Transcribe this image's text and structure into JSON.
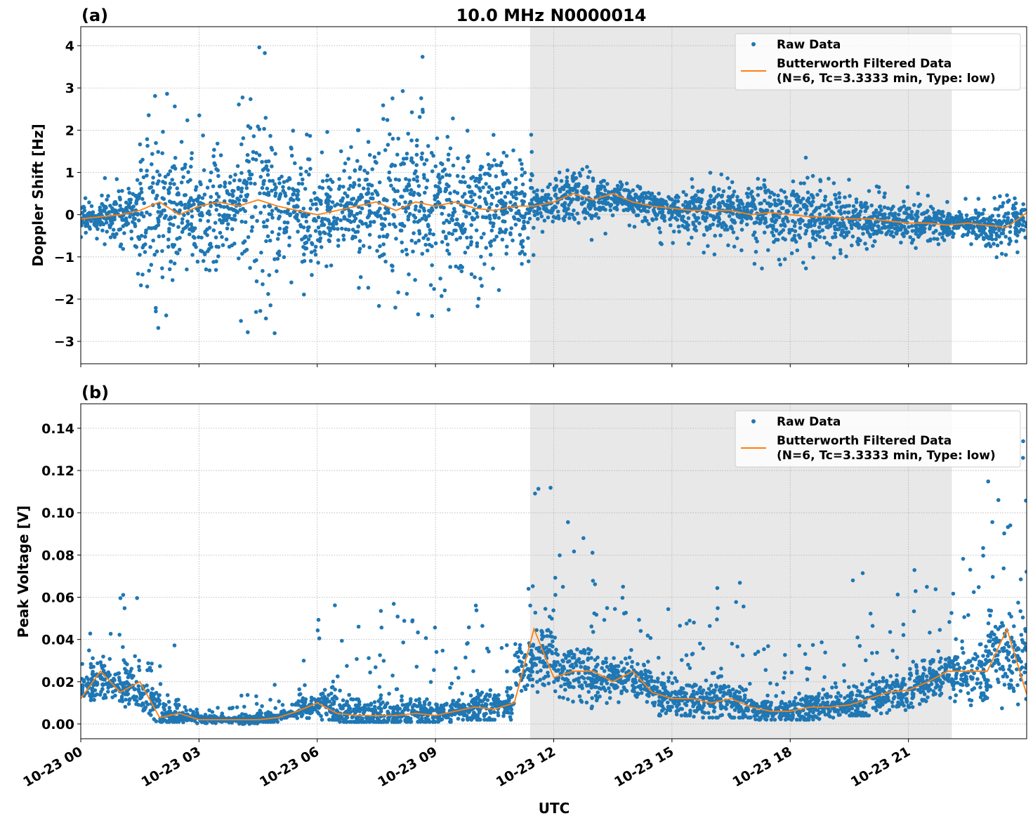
{
  "figure": {
    "title": "10.0 MHz N0000014",
    "xlabel": "UTC"
  },
  "legend": {
    "raw_label": "Raw Data",
    "filtered_label_line1": "Butterworth Filtered Data",
    "filtered_label_line2": "(N=6, Tc=3.3333 min, Type: low)",
    "placement": "top-right"
  },
  "colors": {
    "raw": "#1f77b4",
    "filtered": "#ff7f0e",
    "shade": "#e8e8e8"
  },
  "chart_data": [
    {
      "type": "scatter+line",
      "panel_label": "(a)",
      "ylabel": "Doppler Shift [Hz]",
      "xlim_hours": [
        0,
        24
      ],
      "ylim": [
        -3.53,
        4.45
      ],
      "grid": true,
      "shaded_interval_hours": [
        11.4,
        22.1
      ],
      "x_ticks_hours": [
        0,
        3,
        6,
        9,
        12,
        15,
        18,
        21
      ],
      "y_ticks": [
        -3,
        -2,
        -1,
        0,
        1,
        2,
        3,
        4
      ],
      "y_tick_labels": [
        "−3",
        "−2",
        "−1",
        "0",
        "1",
        "2",
        "3",
        "4"
      ],
      "raw_bins_hours_step": 0.5,
      "raw_min": [
        -0.6,
        -0.7,
        -1.5,
        -3.2,
        -2.9,
        -1.6,
        -2.2,
        -1.5,
        -3.0,
        -2.9,
        -1.8,
        -2.1,
        -1.3,
        -1.5,
        -2.0,
        -2.2,
        -2.5,
        -2.4,
        -2.4,
        -1.9,
        -2.3,
        -1.9,
        -1.2,
        -0.5,
        -0.6,
        -0.8,
        -0.5,
        -0.4,
        -0.6,
        -0.7,
        -0.8,
        -0.9,
        -1.0,
        -1.0,
        -1.3,
        -1.2,
        -1.35,
        -1.2,
        -1.1,
        -0.9,
        -0.8,
        -0.7,
        -0.8,
        -0.7,
        -0.7,
        -0.8,
        -1.1,
        -0.9
      ],
      "raw_max": [
        0.5,
        0.9,
        1.2,
        3.1,
        2.9,
        2.3,
        2.6,
        2.1,
        3.9,
        4.05,
        2.2,
        2.1,
        2.0,
        2.3,
        2.0,
        3.3,
        3.2,
        4.1,
        2.6,
        2.6,
        2.4,
        2.45,
        2.0,
        0.9,
        1.5,
        1.2,
        0.8,
        0.8,
        0.7,
        0.5,
        0.7,
        1.0,
        1.1,
        1.1,
        1.2,
        1.5,
        1.35,
        1.2,
        1.1,
        1.0,
        0.8,
        0.8,
        0.7,
        0.7,
        0.5,
        0.5,
        0.8,
        0.8
      ],
      "filtered_x_hours": [
        0,
        0.5,
        1,
        1.5,
        2,
        2.5,
        3,
        3.5,
        4,
        4.5,
        5,
        5.5,
        6,
        6.5,
        7,
        7.5,
        8,
        8.5,
        9,
        9.5,
        10,
        10.5,
        11,
        11.5,
        12,
        12.5,
        13,
        13.5,
        14,
        14.5,
        15,
        15.5,
        16,
        16.5,
        17,
        17.5,
        18,
        18.5,
        19,
        19.5,
        20,
        20.5,
        21,
        21.5,
        22,
        22.5,
        23,
        23.5,
        24
      ],
      "filtered_y": [
        -0.1,
        -0.05,
        0.0,
        0.1,
        0.3,
        0.0,
        0.2,
        0.3,
        0.2,
        0.35,
        0.2,
        0.1,
        0.0,
        0.1,
        0.2,
        0.3,
        0.1,
        0.3,
        0.2,
        0.3,
        0.15,
        0.1,
        0.2,
        0.2,
        0.3,
        0.5,
        0.35,
        0.5,
        0.3,
        0.2,
        0.15,
        0.1,
        0.1,
        0.1,
        0.0,
        0.05,
        0.0,
        -0.05,
        -0.05,
        -0.1,
        -0.1,
        -0.15,
        -0.2,
        -0.2,
        -0.25,
        -0.2,
        -0.25,
        -0.3,
        0.05
      ]
    },
    {
      "type": "scatter+line",
      "panel_label": "(b)",
      "ylabel": "Peak Voltage [V]",
      "xlim_hours": [
        0,
        24
      ],
      "ylim": [
        -0.007,
        0.1516
      ],
      "grid": true,
      "shaded_interval_hours": [
        11.4,
        22.1
      ],
      "x_ticks_hours": [
        0,
        3,
        6,
        9,
        12,
        15,
        18,
        21
      ],
      "x_tick_labels": [
        "10-23 00",
        "10-23 03",
        "10-23 06",
        "10-23 09",
        "10-23 12",
        "10-23 15",
        "10-23 18",
        "10-23 21"
      ],
      "y_ticks": [
        0,
        0.02,
        0.04,
        0.06,
        0.08,
        0.1,
        0.12,
        0.14
      ],
      "y_tick_labels": [
        "0.00",
        "0.02",
        "0.04",
        "0.06",
        "0.08",
        "0.10",
        "0.12",
        "0.14"
      ],
      "raw_bins_hours_step": 0.5,
      "raw_min": [
        0.004,
        0.005,
        0.004,
        0.001,
        0.001,
        0.0,
        0.0,
        0.0,
        0.0,
        0.001,
        0.001,
        0.002,
        0.002,
        0.001,
        0.001,
        0.001,
        0.001,
        0.001,
        0.001,
        0.002,
        0.002,
        0.002,
        0.003,
        0.01,
        0.005,
        0.006,
        0.006,
        0.005,
        0.005,
        0.004,
        0.004,
        0.003,
        0.003,
        0.003,
        0.002,
        0.002,
        0.002,
        0.002,
        0.003,
        0.004,
        0.005,
        0.006,
        0.008,
        0.008,
        0.009,
        0.008,
        0.006,
        0.004
      ],
      "raw_max": [
        0.05,
        0.048,
        0.067,
        0.038,
        0.038,
        0.012,
        0.01,
        0.008,
        0.015,
        0.02,
        0.012,
        0.03,
        0.064,
        0.042,
        0.05,
        0.058,
        0.059,
        0.048,
        0.035,
        0.049,
        0.061,
        0.04,
        0.08,
        0.114,
        0.098,
        0.097,
        0.076,
        0.065,
        0.052,
        0.066,
        0.064,
        0.05,
        0.07,
        0.07,
        0.04,
        0.035,
        0.044,
        0.04,
        0.037,
        0.077,
        0.06,
        0.062,
        0.077,
        0.065,
        0.085,
        0.087,
        0.115,
        0.145
      ],
      "filtered_x_hours": [
        0,
        0.5,
        1,
        1.5,
        2,
        2.5,
        3,
        3.5,
        4,
        4.5,
        5,
        5.5,
        6,
        6.5,
        7,
        7.5,
        8,
        8.5,
        9,
        9.5,
        10,
        10.5,
        11,
        11.5,
        12,
        12.5,
        13,
        13.5,
        14,
        14.5,
        15,
        15.5,
        16,
        16.5,
        17,
        17.5,
        18,
        18.5,
        19,
        19.5,
        20,
        20.5,
        21,
        21.5,
        22,
        22.5,
        23,
        23.5,
        24
      ],
      "filtered_y": [
        0.012,
        0.025,
        0.015,
        0.02,
        0.003,
        0.005,
        0.002,
        0.002,
        0.002,
        0.002,
        0.003,
        0.006,
        0.01,
        0.005,
        0.004,
        0.004,
        0.004,
        0.005,
        0.004,
        0.006,
        0.008,
        0.007,
        0.01,
        0.045,
        0.022,
        0.025,
        0.025,
        0.02,
        0.025,
        0.015,
        0.012,
        0.012,
        0.01,
        0.012,
        0.008,
        0.006,
        0.006,
        0.008,
        0.008,
        0.009,
        0.012,
        0.015,
        0.016,
        0.02,
        0.025,
        0.025,
        0.025,
        0.045,
        0.014
      ]
    }
  ]
}
